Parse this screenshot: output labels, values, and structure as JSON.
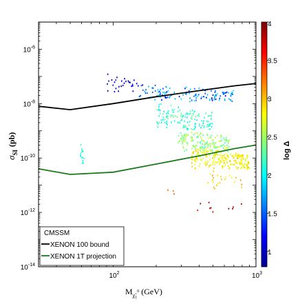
{
  "chart_data": {
    "type": "scatter",
    "xlabel": "M",
    "xlabel_sub": "χ̃",
    "xlabel_subsub": "1",
    "xlabel_sup": "0",
    "xlabel_unit": "(GeV)",
    "ylabel": "σ",
    "ylabel_sub": "SI",
    "ylabel_unit": "(pb)",
    "x_scale": "log",
    "y_scale": "log",
    "xlim": [
      30,
      1000
    ],
    "ylim": [
      1e-14,
      1e-05
    ],
    "x_ticks": [
      {
        "value": 100,
        "base": "10",
        "exp": "2"
      },
      {
        "value": 1000,
        "base": "10",
        "exp": "3"
      }
    ],
    "y_ticks": [
      {
        "value": 1e-06,
        "base": "10",
        "exp": "-6"
      },
      {
        "value": 1e-08,
        "base": "10",
        "exp": "-8"
      },
      {
        "value": 1e-10,
        "base": "10",
        "exp": "-10"
      },
      {
        "value": 1e-12,
        "base": "10",
        "exp": "-12"
      },
      {
        "value": 1e-14,
        "base": "10",
        "exp": "-14"
      }
    ],
    "colorbar": {
      "label": "log Δ",
      "range": [
        0.8,
        4
      ],
      "tick_labels": [
        "1",
        "1.5",
        "2",
        "2.5",
        "3",
        "3.5",
        "4"
      ],
      "tick_values": [
        1,
        1.5,
        2,
        2.5,
        3,
        3.5,
        4
      ],
      "colormap": "jet",
      "colors": [
        "#00008f",
        "#0000ff",
        "#0080ff",
        "#00ffff",
        "#80ff80",
        "#ffff00",
        "#ff8000",
        "#ff0000",
        "#800000"
      ]
    },
    "legend": {
      "position": "bottom-left",
      "title": "CMSSM",
      "entries": [
        {
          "label": "XENON 100 bound",
          "color": "#000000"
        },
        {
          "label": "XENON 1T projection",
          "color": "#1a7a1a"
        }
      ]
    },
    "lines": [
      {
        "name": "XENON 100 bound",
        "color": "#000000",
        "x": [
          30,
          50,
          100,
          200,
          400,
          700,
          1000
        ],
        "y": [
          8e-09,
          6e-09,
          1e-08,
          1.8e-08,
          3e-08,
          4.5e-08,
          5.5e-08
        ]
      },
      {
        "name": "XENON 1T projection",
        "color": "#1a7a1a",
        "x": [
          30,
          50,
          100,
          200,
          400,
          700,
          1000
        ],
        "y": [
          4e-11,
          2.5e-11,
          3e-11,
          6e-11,
          1.2e-10,
          2.2e-10,
          3e-10
        ]
      }
    ],
    "clusters": [
      {
        "x_range": [
          58,
          62
        ],
        "logy_range": [
          -10.3,
          -9.2
        ],
        "color_range": [
          1.7,
          2.2
        ],
        "n": 14
      },
      {
        "x_range": [
          85,
          170
        ],
        "logy_range": [
          -7.6,
          -6.8
        ],
        "color_range": [
          0.9,
          1.3
        ],
        "n": 30
      },
      {
        "x_range": [
          150,
          700
        ],
        "logy_range": [
          -7.9,
          -7.2
        ],
        "color_range": [
          1.2,
          2.0
        ],
        "n": 130
      },
      {
        "x_range": [
          200,
          500
        ],
        "logy_range": [
          -9.0,
          -7.8
        ],
        "color_range": [
          1.9,
          2.4
        ],
        "n": 140
      },
      {
        "x_range": [
          280,
          650
        ],
        "logy_range": [
          -9.8,
          -8.8
        ],
        "color_range": [
          2.2,
          2.7
        ],
        "n": 170
      },
      {
        "x_range": [
          350,
          900
        ],
        "logy_range": [
          -10.4,
          -9.5
        ],
        "color_range": [
          2.6,
          3.0
        ],
        "n": 230
      },
      {
        "x_range": [
          450,
          800
        ],
        "logy_range": [
          -11.2,
          -10.3
        ],
        "color_range": [
          2.7,
          3.2
        ],
        "n": 25
      },
      {
        "x_range": [
          220,
          300
        ],
        "logy_range": [
          -11.3,
          -11.1
        ],
        "color_range": [
          3.1,
          3.4
        ],
        "n": 3
      },
      {
        "x_range": [
          280,
          850
        ],
        "logy_range": [
          -12.0,
          -11.4
        ],
        "color_range": [
          3.6,
          4.0
        ],
        "n": 10
      }
    ]
  }
}
